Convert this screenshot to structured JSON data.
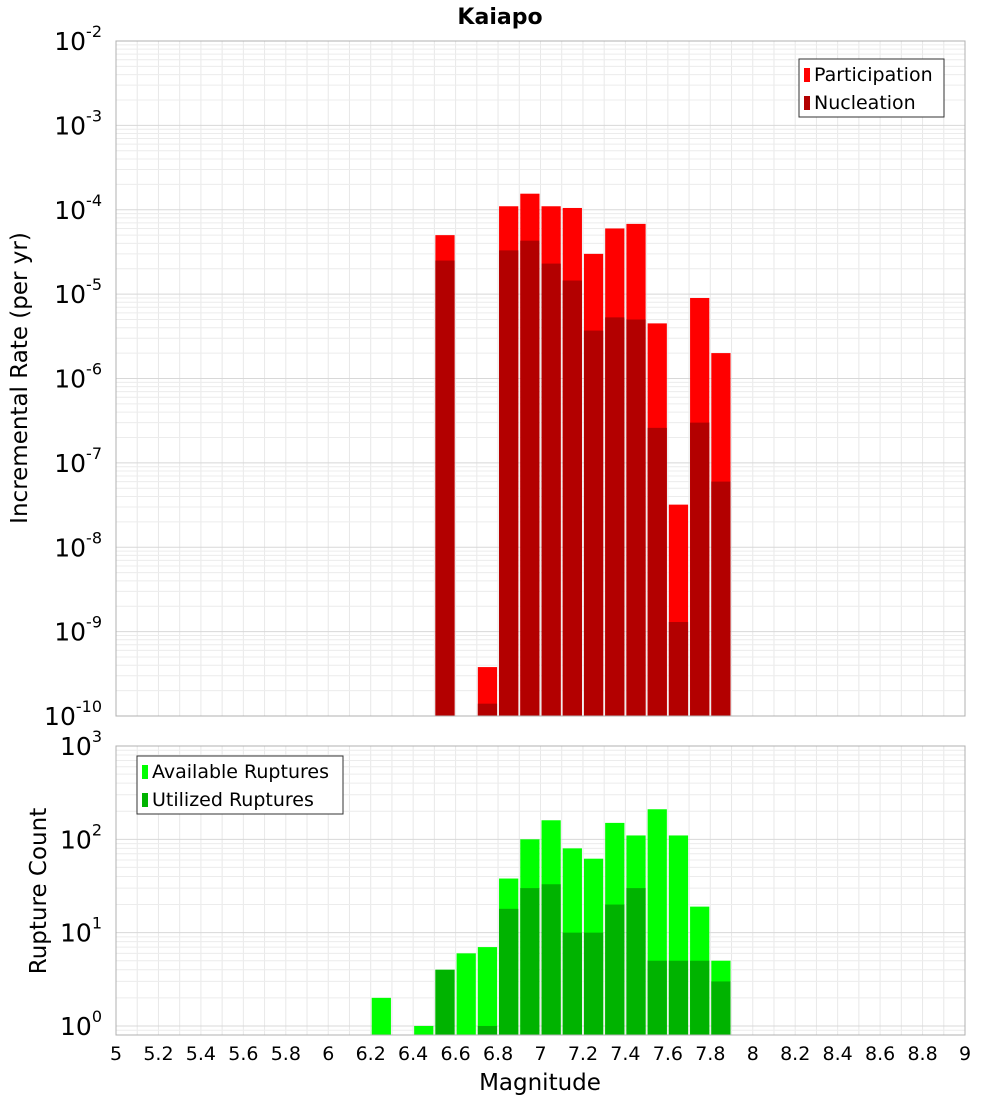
{
  "title": "Kaiapo",
  "chart_data": [
    {
      "type": "bar",
      "ylabel": "Incremental Rate (per yr)",
      "y_scale": "log",
      "ylim": [
        1e-10,
        0.01
      ],
      "y_ticks": [
        {
          "base": "10",
          "exp": "-10"
        },
        {
          "base": "10",
          "exp": "-9"
        },
        {
          "base": "10",
          "exp": "-8"
        },
        {
          "base": "10",
          "exp": "-7"
        },
        {
          "base": "10",
          "exp": "-6"
        },
        {
          "base": "10",
          "exp": "-5"
        },
        {
          "base": "10",
          "exp": "-4"
        },
        {
          "base": "10",
          "exp": "-3"
        },
        {
          "base": "10",
          "exp": "-2"
        }
      ],
      "grid": true,
      "legend": {
        "placement": "top-right",
        "entries": [
          "Participation",
          "Nucleation"
        ]
      },
      "series": [
        {
          "name": "Participation",
          "color": "#ff0000",
          "x": [
            6.55,
            6.75,
            6.85,
            6.95,
            7.05,
            7.15,
            7.25,
            7.35,
            7.45,
            7.55,
            7.65,
            7.75,
            7.85
          ],
          "values": [
            5e-05,
            3.8e-10,
            0.00011,
            0.000155,
            0.00011,
            0.000105,
            3e-05,
            6e-05,
            6.8e-05,
            4.5e-06,
            3.2e-08,
            9e-06,
            2e-06
          ]
        },
        {
          "name": "Nucleation",
          "color": "#b30000",
          "x": [
            6.55,
            6.75,
            6.85,
            6.95,
            7.05,
            7.15,
            7.25,
            7.35,
            7.45,
            7.55,
            7.65,
            7.75,
            7.85
          ],
          "values": [
            2.5e-05,
            1.4e-10,
            3.3e-05,
            4.3e-05,
            2.3e-05,
            1.45e-05,
            3.7e-06,
            5.3e-06,
            5e-06,
            2.6e-07,
            1.3e-09,
            3e-07,
            6e-08
          ]
        }
      ]
    },
    {
      "type": "bar",
      "ylabel": "Rupture Count",
      "xlabel": "Magnitude",
      "y_scale": "log",
      "ylim": [
        0.8,
        1000
      ],
      "y_ticks": [
        {
          "value": 1,
          "base": "10",
          "exp": "0"
        },
        {
          "value": 10,
          "base": "10",
          "exp": "1"
        },
        {
          "value": 100,
          "base": "10",
          "exp": "2"
        },
        {
          "value": 1000,
          "base": "10",
          "exp": "3"
        }
      ],
      "xlim": [
        5,
        9
      ],
      "x_ticks": [
        "5",
        "5.2",
        "5.4",
        "5.6",
        "5.8",
        "6",
        "6.2",
        "6.4",
        "6.6",
        "6.8",
        "7",
        "7.2",
        "7.4",
        "7.6",
        "7.8",
        "8",
        "8.2",
        "8.4",
        "8.6",
        "8.8",
        "9"
      ],
      "grid": true,
      "legend": {
        "placement": "top-left",
        "entries": [
          "Available Ruptures",
          "Utilized Ruptures"
        ]
      },
      "series": [
        {
          "name": "Available Ruptures",
          "color": "#00ff00",
          "x": [
            6.25,
            6.45,
            6.55,
            6.65,
            6.75,
            6.85,
            6.95,
            7.05,
            7.15,
            7.25,
            7.35,
            7.45,
            7.55,
            7.65,
            7.75,
            7.85
          ],
          "values": [
            2,
            1,
            4,
            6,
            7,
            38,
            100,
            160,
            80,
            62,
            150,
            110,
            210,
            110,
            19,
            5
          ]
        },
        {
          "name": "Utilized Ruptures",
          "color": "#00b300",
          "x": [
            6.25,
            6.45,
            6.55,
            6.65,
            6.75,
            6.85,
            6.95,
            7.05,
            7.15,
            7.25,
            7.35,
            7.45,
            7.55,
            7.65,
            7.75,
            7.85
          ],
          "values": [
            0,
            0,
            4,
            0,
            1,
            18,
            30,
            33,
            10,
            10,
            20,
            30,
            5,
            5,
            5,
            3
          ]
        }
      ]
    }
  ]
}
